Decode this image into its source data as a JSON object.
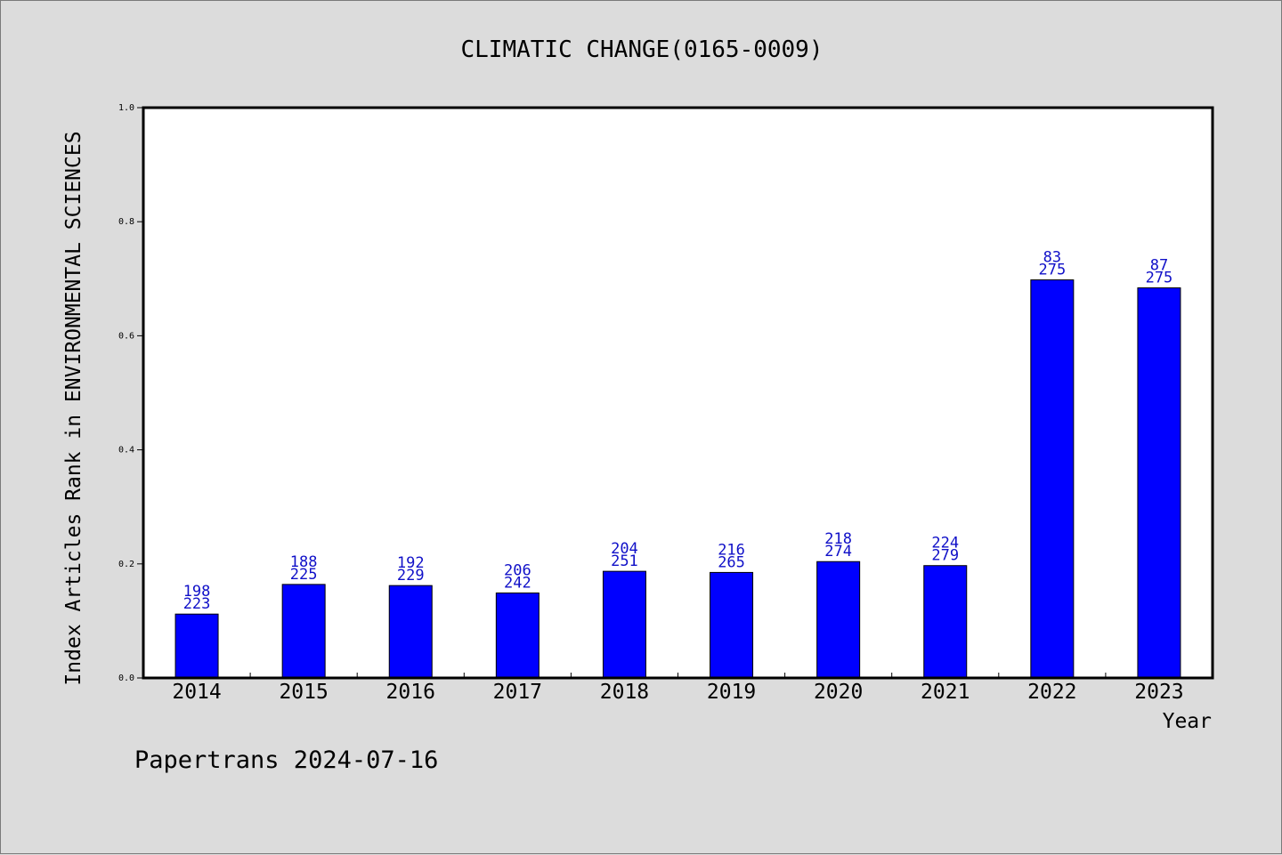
{
  "chart_data": {
    "type": "bar",
    "title": "CLIMATIC CHANGE(0165-0009)",
    "xlabel": "Year",
    "ylabel": "Index Articles Rank in ENVIRONMENTAL SCIENCES",
    "categories": [
      "2014",
      "2015",
      "2016",
      "2017",
      "2018",
      "2019",
      "2020",
      "2021",
      "2022",
      "2023"
    ],
    "values": [
      0.112,
      0.164,
      0.162,
      0.149,
      0.187,
      0.185,
      0.204,
      0.197,
      0.698,
      0.684
    ],
    "labels_top": [
      "198",
      "188",
      "192",
      "206",
      "204",
      "216",
      "218",
      "224",
      "83",
      "87"
    ],
    "labels_bottom": [
      "223",
      "225",
      "229",
      "242",
      "251",
      "265",
      "274",
      "279",
      "275",
      "275"
    ],
    "ylim": [
      0.0,
      1.0
    ],
    "yticks": [
      "0.0",
      "0.2",
      "0.4",
      "0.6",
      "0.8",
      "1.0"
    ],
    "grid": false,
    "bar_color": "#0000ff",
    "label_color": "#1010c8",
    "background": "#dcdcdc",
    "plot_background": "#ffffff"
  },
  "footer": "Papertrans 2024-07-16"
}
